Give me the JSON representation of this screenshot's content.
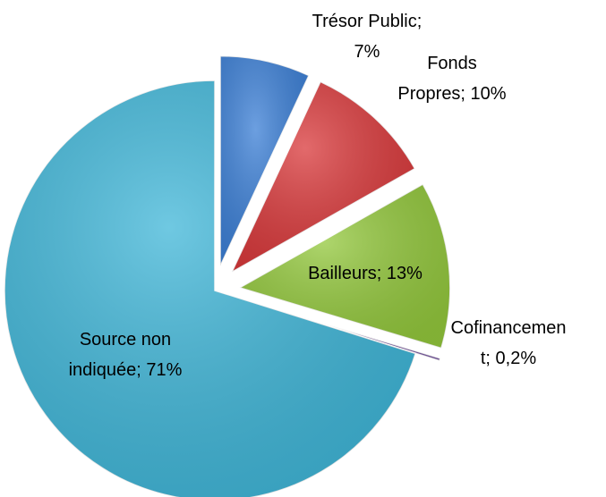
{
  "chart_data": {
    "type": "pie",
    "values": [
      7,
      10,
      13,
      0.2,
      71
    ],
    "value_labels": [
      [
        "Trésor Public;",
        "7%"
      ],
      [
        "Fonds",
        "Propres; 10%"
      ],
      [
        "Bailleurs; 13%"
      ],
      [
        "Cofinancemen",
        "t; 0,2%"
      ],
      [
        "Source non",
        "indiquée; 71%"
      ]
    ],
    "colors": [
      "#3b7fd6",
      "#d9383a",
      "#93c83c",
      "#7d5ca6",
      "#3fb6d8"
    ],
    "exploded": [
      true,
      true,
      true,
      true,
      false
    ]
  }
}
